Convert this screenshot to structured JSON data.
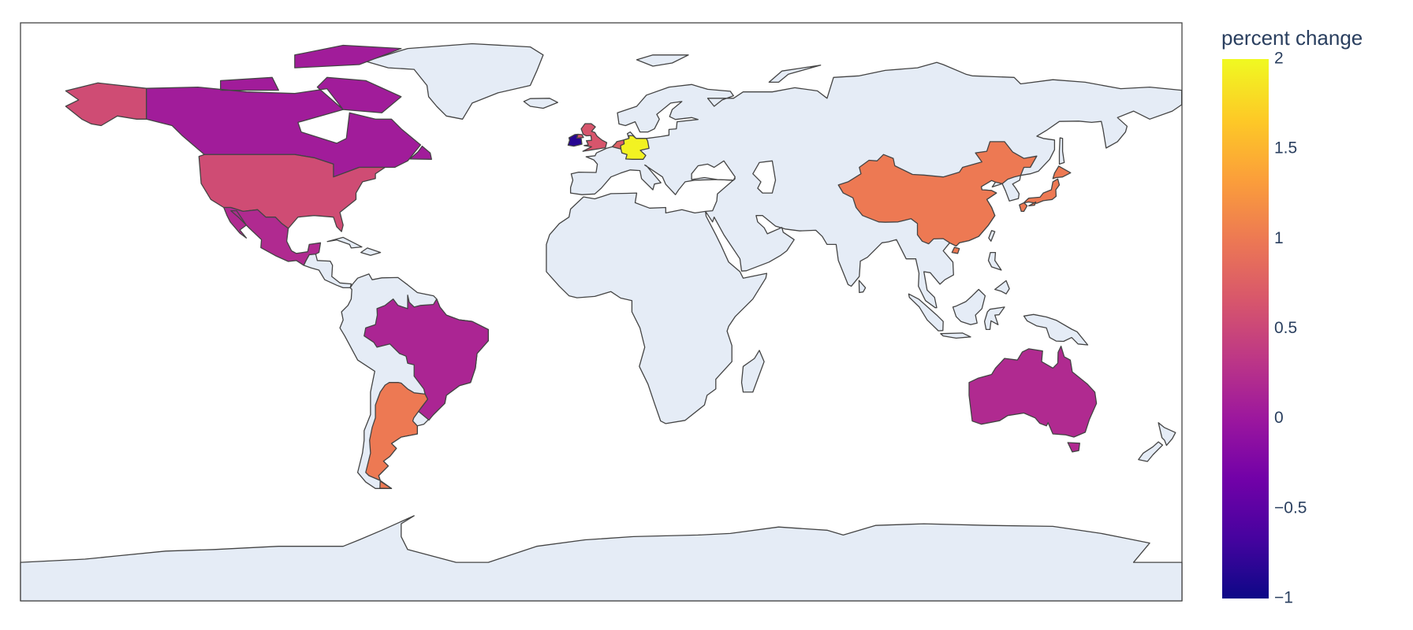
{
  "chart_data": {
    "type": "choropleth",
    "colorbar_title": "percent change",
    "values": [
      0.05,
      0.55,
      0.2,
      0.15,
      1.0,
      0.65,
      -0.85,
      0.75,
      1.95,
      1.0,
      1.0,
      0.2
    ],
    "zlim": [
      -1,
      2
    ],
    "zticks": [
      2,
      1.5,
      1,
      0.5,
      0,
      {
        "value": -0.5,
        "label": "−0.5"
      },
      {
        "value": -1,
        "label": "−1"
      }
    ],
    "colorscale": [
      "#0d0887",
      "#46039f",
      "#7201a8",
      "#9c179e",
      "#bd3786",
      "#d8576b",
      "#ed7953",
      "#fb9f3a",
      "#fdca26",
      "#f0f921"
    ],
    "land_color": "#e5ecf6",
    "border_color": "#444444"
  }
}
